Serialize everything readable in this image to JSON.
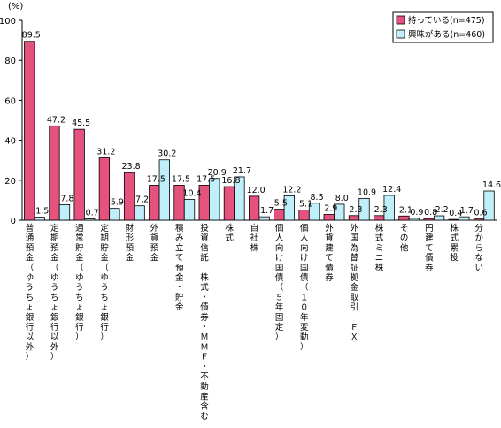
{
  "chart_data": {
    "type": "bar",
    "unit_label": "(%)",
    "ylim": [
      0,
      100
    ],
    "yticks": [
      0,
      20,
      40,
      60,
      80,
      100
    ],
    "grid": false,
    "legend_position": "top-right",
    "categories": [
      "普通預金（ゆうちょ銀行以外）",
      "定期預金（ゆうちょ銀行以外）",
      "通常貯金（ゆうちょ銀行）",
      "定期貯金（ゆうちょ銀行）",
      "財形預金",
      "外貨預金",
      "積み立て預金・貯金",
      "投資信託　株式・債券・ＭＭＦ・不動産含む",
      "株式",
      "自社株",
      "個人向け国債（５年固定）",
      "個人向け国債（１０年変動）",
      "外貨建て債券",
      "外国為替証拠金取引　ＦＸ",
      "株式ミニ株",
      "その他",
      "円建て債券",
      "株式累投",
      "分からない"
    ],
    "series": [
      {
        "name": "持っている(n=475)",
        "color": "#e5527e",
        "values": [
          89.5,
          47.2,
          45.5,
          31.2,
          23.8,
          17.5,
          17.5,
          17.5,
          16.8,
          12.0,
          5.5,
          5.1,
          2.9,
          2.3,
          2.3,
          2.1,
          0.8,
          0.4,
          0.6
        ]
      },
      {
        "name": "興味がある(n=460)",
        "color": "#bfeffb",
        "values": [
          1.5,
          7.8,
          0.7,
          5.9,
          7.2,
          30.2,
          10.4,
          20.9,
          21.7,
          1.7,
          12.2,
          8.5,
          8.0,
          10.9,
          12.4,
          0.9,
          2.2,
          1.7,
          14.6
        ]
      }
    ]
  }
}
